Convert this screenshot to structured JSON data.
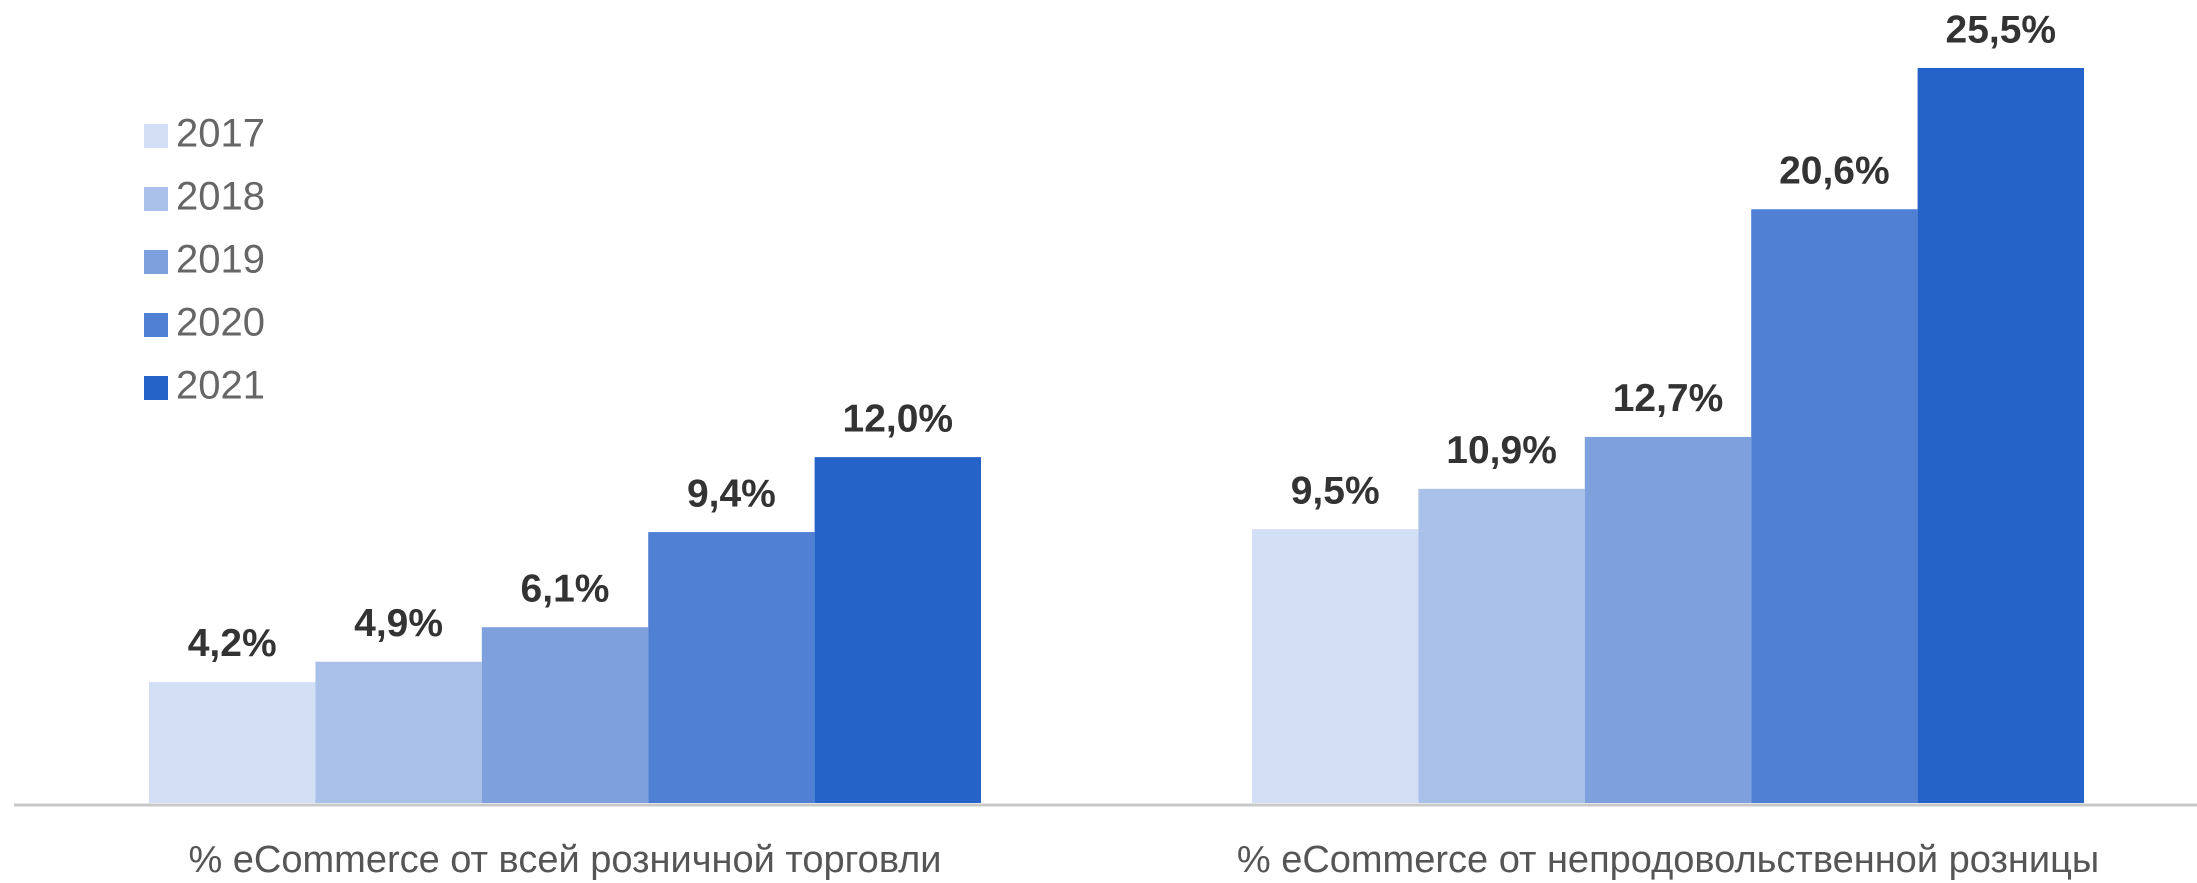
{
  "chart_data": {
    "type": "bar",
    "categories": [
      "% eCommerce от всей розничной торговли",
      "% eCommerce от непродовольственной розницы"
    ],
    "series": [
      {
        "name": "2017",
        "color": "#d3dff5",
        "values": [
          4.2,
          9.5
        ],
        "value_labels": [
          "4,2%",
          "9,5%"
        ]
      },
      {
        "name": "2018",
        "color": "#a9c0e9",
        "values": [
          4.9,
          10.9
        ],
        "value_labels": [
          "4,9%",
          "10,9%"
        ]
      },
      {
        "name": "2019",
        "color": "#7ea0dd",
        "values": [
          6.1,
          12.7
        ],
        "value_labels": [
          "6,1%",
          "12,7%"
        ]
      },
      {
        "name": "2020",
        "color": "#5080d4",
        "values": [
          9.4,
          20.6
        ],
        "value_labels": [
          "9,4%",
          "20,6%"
        ]
      },
      {
        "name": "2021",
        "color": "#2563c8",
        "values": [
          12.0,
          25.5
        ],
        "value_labels": [
          "12,0%",
          "25,5%"
        ]
      }
    ],
    "legend": "upper left"
  }
}
